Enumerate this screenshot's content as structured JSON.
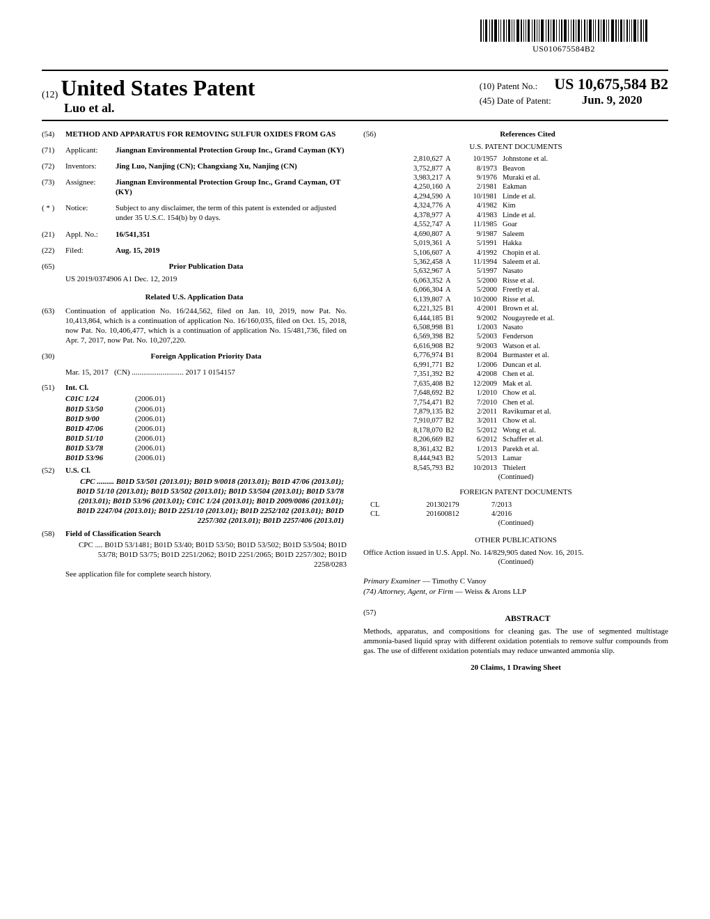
{
  "barcode_text": "US010675584B2",
  "header": {
    "twelve": "(12)",
    "usp": "United States Patent",
    "authors": "Luo et al.",
    "patent_no_label": "(10) Patent No.:",
    "patent_no": "US 10,675,584 B2",
    "date_label": "(45) Date of Patent:",
    "date": "Jun. 9, 2020"
  },
  "left": {
    "title_num": "(54)",
    "title": "METHOD AND APPARATUS FOR REMOVING SULFUR OXIDES FROM GAS",
    "applicant_num": "(71)",
    "applicant_lab": "Applicant:",
    "applicant_val": "Jiangnan Environmental Protection Group Inc., Grand Cayman (KY)",
    "inventors_num": "(72)",
    "inventors_lab": "Inventors:",
    "inventors_val": "Jing Luo, Nanjing (CN); Changxiang Xu, Nanjing (CN)",
    "assignee_num": "(73)",
    "assignee_lab": "Assignee:",
    "assignee_val": "Jiangnan Environmental Protection Group Inc., Grand Cayman, OT (KY)",
    "notice_num": "( * )",
    "notice_lab": "Notice:",
    "notice_val": "Subject to any disclaimer, the term of this patent is extended or adjusted under 35 U.S.C. 154(b) by 0 days.",
    "appl_num": "(21)",
    "appl_lab": "Appl. No.:",
    "appl_val": "16/541,351",
    "filed_num": "(22)",
    "filed_lab": "Filed:",
    "filed_val": "Aug. 15, 2019",
    "prior_num": "(65)",
    "prior_title": "Prior Publication Data",
    "prior_val": "US 2019/0374906 A1      Dec. 12, 2019",
    "related_title": "Related U.S. Application Data",
    "related_num": "(63)",
    "related_val": "Continuation of application No. 16/244,562, filed on Jan. 10, 2019, now Pat. No. 10,413,864, which is a continuation of application No. 16/160,035, filed on Oct. 15, 2018, now Pat. No. 10,406,477, which is a continuation of application No. 15/481,736, filed on Apr. 7, 2017, now Pat. No. 10,207,220.",
    "foreign_num": "(30)",
    "foreign_title": "Foreign Application Priority Data",
    "foreign_date": "Mar. 15, 2017",
    "foreign_cc": "(CN)",
    "foreign_dots": "...........................",
    "foreign_no": "2017 1 0154157",
    "intcl_num": "(51)",
    "intcl_title": "Int. Cl.",
    "intcl": [
      {
        "code": "C01C 1/24",
        "yr": "(2006.01)"
      },
      {
        "code": "B01D 53/50",
        "yr": "(2006.01)"
      },
      {
        "code": "B01D 9/00",
        "yr": "(2006.01)"
      },
      {
        "code": "B01D 47/06",
        "yr": "(2006.01)"
      },
      {
        "code": "B01D 51/10",
        "yr": "(2006.01)"
      },
      {
        "code": "B01D 53/78",
        "yr": "(2006.01)"
      },
      {
        "code": "B01D 53/96",
        "yr": "(2006.01)"
      }
    ],
    "uscl_num": "(52)",
    "uscl_title": "U.S. Cl.",
    "uscl_val": "CPC ......... B01D 53/501 (2013.01); B01D 9/0018 (2013.01); B01D 47/06 (2013.01); B01D 51/10 (2013.01); B01D 53/502 (2013.01); B01D 53/504 (2013.01); B01D 53/78 (2013.01); B01D 53/96 (2013.01); C01C 1/24 (2013.01); B01D 2009/0086 (2013.01); B01D 2247/04 (2013.01); B01D 2251/10 (2013.01); B01D 2252/102 (2013.01); B01D 2257/302 (2013.01); B01D 2257/406 (2013.01)",
    "fcs_num": "(58)",
    "fcs_title": "Field of Classification Search",
    "fcs_val": "CPC .... B01D 53/1481; B01D 53/40; B01D 53/50; B01D 53/502; B01D 53/504; B01D 53/78; B01D 53/75; B01D 2251/2062; B01D 2251/2065; B01D 2257/302; B01D 2258/0283",
    "fcs_note": "See application file for complete search history."
  },
  "right": {
    "refs_num": "(56)",
    "refs_title": "References Cited",
    "uspd_title": "U.S. PATENT DOCUMENTS",
    "refs": [
      {
        "n": "2,810,627",
        "t": "A",
        "d": "10/1957",
        "a": "Johnstone et al."
      },
      {
        "n": "3,752,877",
        "t": "A",
        "d": "8/1973",
        "a": "Beavon"
      },
      {
        "n": "3,983,217",
        "t": "A",
        "d": "9/1976",
        "a": "Muraki et al."
      },
      {
        "n": "4,250,160",
        "t": "A",
        "d": "2/1981",
        "a": "Eakman"
      },
      {
        "n": "4,294,590",
        "t": "A",
        "d": "10/1981",
        "a": "Linde et al."
      },
      {
        "n": "4,324,776",
        "t": "A",
        "d": "4/1982",
        "a": "Kim"
      },
      {
        "n": "4,378,977",
        "t": "A",
        "d": "4/1983",
        "a": "Linde et al."
      },
      {
        "n": "4,552,747",
        "t": "A",
        "d": "11/1985",
        "a": "Goar"
      },
      {
        "n": "4,690,807",
        "t": "A",
        "d": "9/1987",
        "a": "Saleem"
      },
      {
        "n": "5,019,361",
        "t": "A",
        "d": "5/1991",
        "a": "Hakka"
      },
      {
        "n": "5,106,607",
        "t": "A",
        "d": "4/1992",
        "a": "Chopin et al."
      },
      {
        "n": "5,362,458",
        "t": "A",
        "d": "11/1994",
        "a": "Saleem et al."
      },
      {
        "n": "5,632,967",
        "t": "A",
        "d": "5/1997",
        "a": "Nasato"
      },
      {
        "n": "6,063,352",
        "t": "A",
        "d": "5/2000",
        "a": "Risse et al."
      },
      {
        "n": "6,066,304",
        "t": "A",
        "d": "5/2000",
        "a": "Freetly et al."
      },
      {
        "n": "6,139,807",
        "t": "A",
        "d": "10/2000",
        "a": "Risse et al."
      },
      {
        "n": "6,221,325",
        "t": "B1",
        "d": "4/2001",
        "a": "Brown et al."
      },
      {
        "n": "6,444,185",
        "t": "B1",
        "d": "9/2002",
        "a": "Nougayrede et al."
      },
      {
        "n": "6,508,998",
        "t": "B1",
        "d": "1/2003",
        "a": "Nasato"
      },
      {
        "n": "6,569,398",
        "t": "B2",
        "d": "5/2003",
        "a": "Fenderson"
      },
      {
        "n": "6,616,908",
        "t": "B2",
        "d": "9/2003",
        "a": "Watson et al."
      },
      {
        "n": "6,776,974",
        "t": "B1",
        "d": "8/2004",
        "a": "Burmaster et al."
      },
      {
        "n": "6,991,771",
        "t": "B2",
        "d": "1/2006",
        "a": "Duncan et al."
      },
      {
        "n": "7,351,392",
        "t": "B2",
        "d": "4/2008",
        "a": "Chen et al."
      },
      {
        "n": "7,635,408",
        "t": "B2",
        "d": "12/2009",
        "a": "Mak et al."
      },
      {
        "n": "7,648,692",
        "t": "B2",
        "d": "1/2010",
        "a": "Chow et al."
      },
      {
        "n": "7,754,471",
        "t": "B2",
        "d": "7/2010",
        "a": "Chen et al."
      },
      {
        "n": "7,879,135",
        "t": "B2",
        "d": "2/2011",
        "a": "Ravikumar et al."
      },
      {
        "n": "7,910,077",
        "t": "B2",
        "d": "3/2011",
        "a": "Chow et al."
      },
      {
        "n": "8,178,070",
        "t": "B2",
        "d": "5/2012",
        "a": "Wong et al."
      },
      {
        "n": "8,206,669",
        "t": "B2",
        "d": "6/2012",
        "a": "Schaffer et al."
      },
      {
        "n": "8,361,432",
        "t": "B2",
        "d": "1/2013",
        "a": "Parekh et al."
      },
      {
        "n": "8,444,943",
        "t": "B2",
        "d": "5/2013",
        "a": "Lamar"
      },
      {
        "n": "8,545,793",
        "t": "B2",
        "d": "10/2013",
        "a": "Thielert"
      }
    ],
    "continued": "(Continued)",
    "fpd_title": "FOREIGN PATENT DOCUMENTS",
    "fpd": [
      {
        "cc": "CL",
        "num": "201302179",
        "dt": "7/2013"
      },
      {
        "cc": "CL",
        "num": "201600812",
        "dt": "4/2016"
      }
    ],
    "other_title": "OTHER PUBLICATIONS",
    "other_val": "Office Action issued in U.S. Appl. No. 14/829,905 dated Nov. 16, 2015.",
    "examiner_lab": "Primary Examiner",
    "examiner_val": "Timothy C Vanoy",
    "attorney_lab": "(74) Attorney, Agent, or Firm",
    "attorney_val": "Weiss & Arons LLP",
    "abstract_num": "(57)",
    "abstract_title": "ABSTRACT",
    "abstract_val": "Methods, apparatus, and compositions for cleaning gas. The use of segmented multistage ammonia-based liquid spray with different oxidation potentials to remove sulfur compounds from gas. The use of different oxidation potentials may reduce unwanted ammonia slip.",
    "claims": "20 Claims, 1 Drawing Sheet"
  }
}
